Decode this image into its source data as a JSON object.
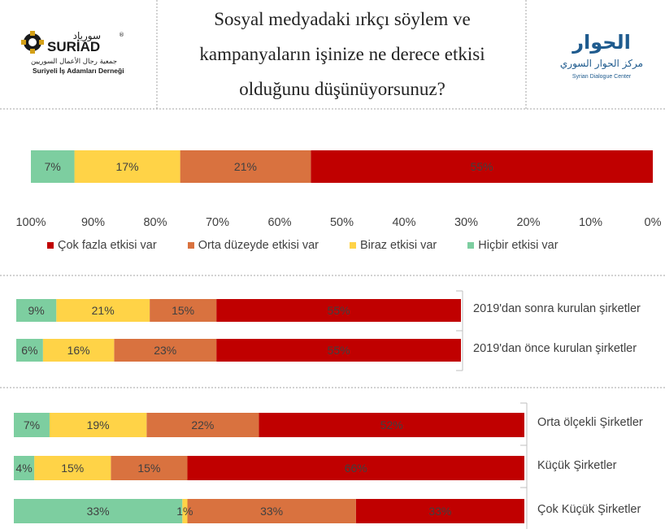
{
  "header": {
    "title": "Sosyal medyadaki ırkçı söylem ve kampanyaların işinize ne derece etkisi olduğunu düşünüyorsunuz?",
    "title_lines": [
      "Sosyal medyadaki ırkçı söylem ve",
      "kampanyaların işinize ne derece etkisi",
      "olduğunu düşünüyorsunuz?"
    ],
    "logo_left": {
      "arabic_name": "سورياد",
      "name": "SURİAD",
      "registered_mark": "®",
      "arabic_subtitle": "جمعية رجال الأعمال السوريين",
      "subtitle": "Suriyeli İş Adamları Derneği"
    },
    "logo_right": {
      "arabic_mark": "الحوار",
      "arabic_name": "مركز الحوار السوري",
      "name": "Syrian Dialogue Center"
    }
  },
  "colors": {
    "cok_fazla": "#c00000",
    "orta": "#d9723f",
    "biraz": "#ffd347",
    "hicbir": "#7dcea0",
    "label_text": "#404040"
  },
  "chart_data": [
    {
      "type": "bar",
      "orientation": "horizontal-stacked",
      "x_axis_reversed": true,
      "xlim": [
        0,
        100
      ],
      "x_ticks": [
        "100%",
        "90%",
        "80%",
        "70%",
        "60%",
        "50%",
        "40%",
        "30%",
        "20%",
        "10%",
        "0%"
      ],
      "legend": [
        {
          "name": "Çok fazla etkisi var",
          "color": "#c00000"
        },
        {
          "name": "Orta düzeyde etkisi var",
          "color": "#d9723f"
        },
        {
          "name": "Biraz etkisi var",
          "color": "#ffd347"
        },
        {
          "name": "Hiçbir etkisi var",
          "color": "#7dcea0"
        }
      ],
      "legend_placement": "bottom",
      "categories": [
        ""
      ],
      "series": [
        {
          "name": "Çok fazla etkisi var",
          "values": [
            55
          ]
        },
        {
          "name": "Orta düzeyde etkisi var",
          "values": [
            21
          ]
        },
        {
          "name": "Biraz etkisi var",
          "values": [
            17
          ]
        },
        {
          "name": "Hiçbir etkisi var",
          "values": [
            7
          ]
        }
      ]
    },
    {
      "type": "bar",
      "orientation": "horizontal-stacked",
      "x_axis_reversed": true,
      "categories": [
        "2019'dan sonra kurulan şirketler",
        "2019'dan önce kurulan şirketler"
      ],
      "series": [
        {
          "name": "Çok fazla etkisi var",
          "values": [
            55,
            55
          ]
        },
        {
          "name": "Orta düzeyde etkisi var",
          "values": [
            15,
            23
          ]
        },
        {
          "name": "Biraz etkisi var",
          "values": [
            21,
            16
          ]
        },
        {
          "name": "Hiçbir etkisi var",
          "values": [
            9,
            6
          ]
        }
      ]
    },
    {
      "type": "bar",
      "orientation": "horizontal-stacked",
      "x_axis_reversed": true,
      "categories": [
        "Orta ölçekli Şirketler",
        "Küçük Şirketler",
        "Çok Küçük Şirketler"
      ],
      "series": [
        {
          "name": "Çok fazla etkisi var",
          "values": [
            52,
            66,
            33
          ]
        },
        {
          "name": "Orta düzeyde etkisi var",
          "values": [
            22,
            15,
            33
          ]
        },
        {
          "name": "Biraz etkisi var",
          "values": [
            19,
            15,
            1
          ]
        },
        {
          "name": "Hiçbir etkisi var",
          "values": [
            7,
            4,
            33
          ]
        }
      ]
    }
  ]
}
